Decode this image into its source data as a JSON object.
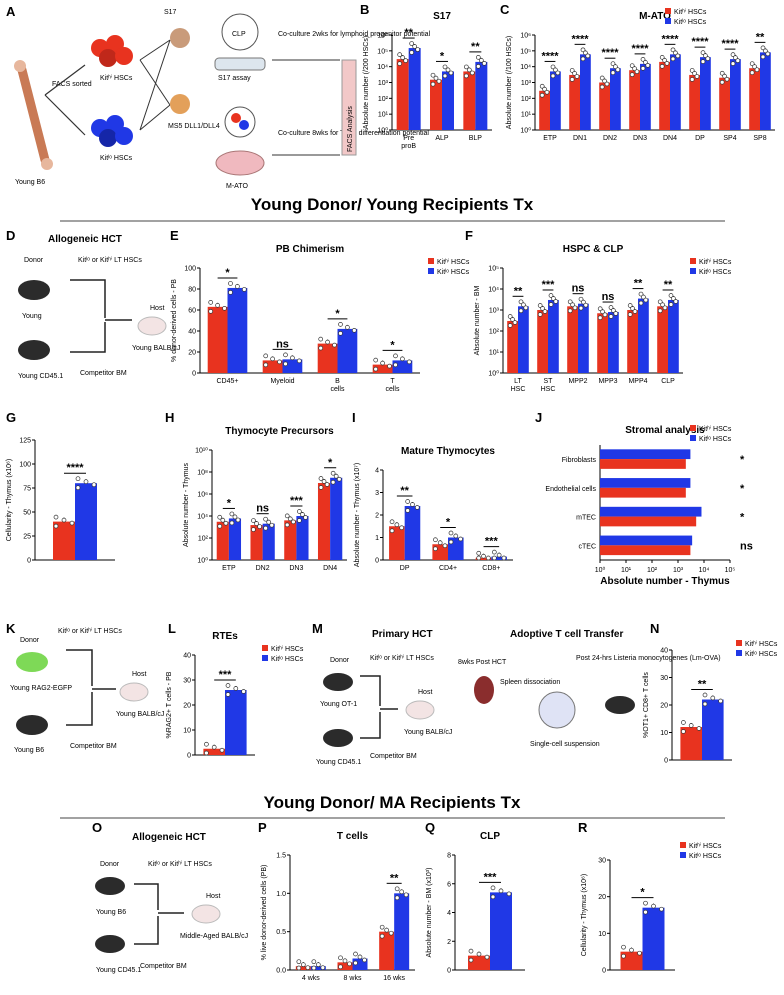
{
  "colors": {
    "red": "#e8331f",
    "blue": "#2038e6",
    "stars": "#000000"
  },
  "legend": {
    "hi": "Kitʰⁱ HSCs",
    "lo": "Kitˡᵒ HSCs"
  },
  "sections": {
    "young": "Young Donor/ Young Recipients Tx",
    "ma": "Young Donor/ MA Recipients Tx"
  },
  "panelA": {
    "label": "A",
    "young_b6": "Young B6",
    "facs": "FACS sorted",
    "kit_hi": "Kitʰⁱ HSCs",
    "kit_lo": "Kitˡᵒ HSCs",
    "s17": "S17",
    "ms5": "MS5 DLL1/DLL4",
    "clp": "CLP",
    "s17_assay": "S17 assay",
    "matoo": "M-ATO",
    "co1": "Co-culture 2wks for lymphoid progenitor potential",
    "co2": "Co-culture 8wks for T cell differentiation potential",
    "facs_analysis": "FACS Analysis"
  },
  "panelD": {
    "label": "D",
    "title": "Allogeneic HCT",
    "donor": "Donor",
    "young": "Young",
    "young_cd451": "Young CD45.1",
    "lt": "Kitˡᵒ or Kitʰⁱ LT HSCs",
    "host": "Host",
    "recipient": "Young BALB/cJ",
    "competitor": "Competitor BM"
  },
  "panelK": {
    "label": "K",
    "donor": "Donor",
    "young_rag": "Young RAG2-EGFP",
    "young_b6": "Young B6",
    "lt": "Kitˡᵒ or Kitʰⁱ LT HSCs",
    "host": "Host",
    "recipient": "Young BALB/cJ",
    "competitor": "Competitor BM"
  },
  "panelM": {
    "label": "M",
    "title1": "Primary HCT",
    "title2": "Adoptive T cell Transfer",
    "donor": "Donor",
    "young_ot1": "Young OT-1",
    "young_cd451": "Young CD45.1",
    "lt": "Kitˡᵒ or Kitʰⁱ LT HSCs",
    "host": "Host",
    "recipient": "Young BALB/cJ",
    "competitor": "Competitor BM",
    "weeks": "8wks Post HCT",
    "spleen": "Spleen dissociation",
    "single": "Single-cell suspension",
    "post": "Post 24-hrs Listeria monocytogenes (Lm-OVA)"
  },
  "panelO": {
    "label": "O",
    "title": "Allogeneic HCT",
    "donor": "Donor",
    "young_b6": "Young B6",
    "young_cd451": "Young CD45.1",
    "lt": "Kitˡᵒ or Kitʰⁱ LT HSCs",
    "host": "Host",
    "recipient": "Middle-Aged BALB/cJ",
    "competitor": "Competitor BM"
  },
  "chart_data": [
    {
      "id": "B",
      "type": "bar",
      "title": "S17",
      "scale": "log",
      "ylabel": "Absolute number (/200 HSCs)",
      "categories": [
        "Pre proB",
        "ALP",
        "BLP"
      ],
      "ylim": [
        1,
        1000000
      ],
      "yticks": [
        "10⁰",
        "10¹",
        "10²",
        "10³",
        "10⁴",
        "10⁵",
        "10⁶"
      ],
      "series": [
        {
          "name": "Kit hi",
          "values": [
            30000,
            1500,
            5000
          ]
        },
        {
          "name": "Kit lo",
          "values": [
            150000,
            5000,
            20000
          ]
        }
      ],
      "sig": [
        "**",
        "*",
        "**"
      ]
    },
    {
      "id": "C",
      "type": "bar",
      "title": "M-ATO",
      "scale": "log",
      "ylabel": "Absolute number (/100 HSCs)",
      "categories": [
        "ETP",
        "DN1",
        "DN2",
        "DN3",
        "DN4",
        "DP",
        "SP4",
        "SP8"
      ],
      "ylim": [
        1,
        1000000
      ],
      "yticks": [
        "10⁰",
        "10¹",
        "10²",
        "10³",
        "10⁴",
        "10⁵",
        "10⁶"
      ],
      "series": [
        {
          "name": "Kit hi",
          "values": [
            300,
            3000,
            1000,
            6000,
            20000,
            3000,
            2000,
            8000
          ]
        },
        {
          "name": "Kit lo",
          "values": [
            5000,
            60000,
            8000,
            15000,
            60000,
            40000,
            30000,
            80000
          ]
        }
      ],
      "sig": [
        "****",
        "****",
        "****",
        "****",
        "****",
        "****",
        "****",
        "**"
      ]
    },
    {
      "id": "E",
      "type": "bar",
      "title": "PB Chimerism",
      "scale": "linear",
      "ylabel": "% donor-derived cells - PB",
      "categories": [
        "CD45+",
        "Myeloid",
        "B cells",
        "T cells"
      ],
      "ylim": [
        0,
        100
      ],
      "yticks": [
        "0",
        "20",
        "40",
        "60",
        "80",
        "100"
      ],
      "series": [
        {
          "name": "Kit hi",
          "values": [
            63,
            12,
            28,
            8
          ]
        },
        {
          "name": "Kit lo",
          "values": [
            81,
            13,
            42,
            12
          ]
        }
      ],
      "sig": [
        "*",
        "ns",
        "*",
        "*"
      ]
    },
    {
      "id": "F",
      "type": "bar",
      "title": "HSPC & CLP",
      "scale": "log",
      "ylabel": "Absolute number - BM",
      "categories": [
        "LT HSC",
        "ST HSC",
        "MPP2",
        "MPP3",
        "MPP4",
        "CLP"
      ],
      "ylim": [
        1,
        100000
      ],
      "yticks": [
        "10⁰",
        "10¹",
        "10²",
        "10³",
        "10⁴",
        "10⁵"
      ],
      "series": [
        {
          "name": "Kit hi",
          "values": [
            300,
            1000,
            1500,
            700,
            1000,
            1500
          ]
        },
        {
          "name": "Kit lo",
          "values": [
            1500,
            3000,
            2000,
            800,
            3500,
            3000
          ]
        }
      ],
      "sig": [
        "**",
        "***",
        "ns",
        "ns",
        "**",
        "**"
      ]
    },
    {
      "id": "G",
      "type": "bar",
      "title": "",
      "scale": "linear",
      "ylabel": "Cellularity - Thymus (x10⁶)",
      "categories": [
        ""
      ],
      "ylim": [
        0,
        125
      ],
      "yticks": [
        "0",
        "25",
        "50",
        "75",
        "100",
        "125"
      ],
      "series": [
        {
          "name": "Kit hi",
          "values": [
            40
          ]
        },
        {
          "name": "Kit lo",
          "values": [
            80
          ]
        }
      ],
      "sig": [
        "****"
      ]
    },
    {
      "id": "H",
      "type": "bar",
      "title": "Thymocyte Precursors",
      "scale": "log",
      "ylabel": "Absolute number - Thymus",
      "categories": [
        "ETP",
        "DN2",
        "DN3",
        "DN4"
      ],
      "ylim": [
        1,
        10000000000
      ],
      "yticks": [
        "10⁰",
        "10²",
        "10⁴",
        "10⁶",
        "10⁸",
        "10¹⁰"
      ],
      "series": [
        {
          "name": "Kit hi",
          "values": [
            3000,
            1500,
            4000,
            10000000
          ]
        },
        {
          "name": "Kit lo",
          "values": [
            6000,
            2000,
            10000,
            30000000
          ]
        }
      ],
      "sig": [
        "*",
        "ns",
        "***",
        "*"
      ]
    },
    {
      "id": "I",
      "type": "bar",
      "title": "Mature Thymocytes",
      "scale": "linear",
      "ylabel": "Absolute number - Thymus (x10⁷)",
      "categories": [
        "DP",
        "CD4+",
        "CD8+"
      ],
      "ylim": [
        0,
        4
      ],
      "yticks": [
        "0",
        "1",
        "2",
        "3",
        "4"
      ],
      "series": [
        {
          "name": "Kit hi",
          "values": [
            1.5,
            0.7,
            0.1
          ]
        },
        {
          "name": "Kit lo",
          "values": [
            2.4,
            1.0,
            0.15
          ]
        }
      ],
      "sig": [
        "**",
        "*",
        "***"
      ]
    },
    {
      "id": "J",
      "type": "hbar",
      "title": "Stromal analysis",
      "scale": "log",
      "xlabel": "Absolute number - Thymus",
      "categories": [
        "Fibroblasts",
        "Endothelial cells",
        "mTEC",
        "cTEC"
      ],
      "xlim": [
        1,
        100000
      ],
      "xticks": [
        "10⁰",
        "10¹",
        "10²",
        "10³",
        "10⁴",
        "10⁵"
      ],
      "series": [
        {
          "name": "Kit hi",
          "values": [
            2000,
            2000,
            5000,
            3000
          ]
        },
        {
          "name": "Kit lo",
          "values": [
            3000,
            3000,
            8000,
            3500
          ]
        }
      ],
      "sig": [
        "*",
        "*",
        "*",
        "ns"
      ]
    },
    {
      "id": "L",
      "type": "bar",
      "title": "RTEs",
      "scale": "linear",
      "ylabel": "%RAG2+ T cells - PB",
      "categories": [
        ""
      ],
      "ylim": [
        0,
        40
      ],
      "yticks": [
        "0",
        "10",
        "20",
        "30",
        "40"
      ],
      "series": [
        {
          "name": "Kit hi",
          "values": [
            2.5
          ]
        },
        {
          "name": "Kit lo",
          "values": [
            26
          ]
        }
      ],
      "sig": [
        "***"
      ]
    },
    {
      "id": "N",
      "type": "bar",
      "title": "",
      "scale": "linear",
      "ylabel": "%OT1+ CD8+ T cells",
      "categories": [
        ""
      ],
      "ylim": [
        0,
        40
      ],
      "yticks": [
        "0",
        "10",
        "20",
        "30",
        "40"
      ],
      "series": [
        {
          "name": "Kit hi",
          "values": [
            12
          ]
        },
        {
          "name": "Kit lo",
          "values": [
            22
          ]
        }
      ],
      "sig": [
        "**"
      ]
    },
    {
      "id": "P",
      "type": "bar",
      "title": "T cells",
      "scale": "linear",
      "ylabel": "% live donor-derived cells (PB)",
      "categories": [
        "4 wks",
        "8 wks",
        "16 wks"
      ],
      "ylim": [
        0,
        1.5
      ],
      "yticks": [
        "0.0",
        "0.5",
        "1.0",
        "1.5"
      ],
      "series": [
        {
          "name": "Kit hi",
          "values": [
            0.05,
            0.1,
            0.5
          ]
        },
        {
          "name": "Kit lo",
          "values": [
            0.05,
            0.15,
            1.0
          ]
        }
      ],
      "sig": [
        "",
        "",
        "**"
      ]
    },
    {
      "id": "Q",
      "type": "bar",
      "title": "CLP",
      "scale": "linear",
      "ylabel": "Absolute number - BM (x10³)",
      "categories": [
        ""
      ],
      "ylim": [
        0,
        8
      ],
      "yticks": [
        "0",
        "2",
        "4",
        "6",
        "8"
      ],
      "series": [
        {
          "name": "Kit hi",
          "values": [
            1.0
          ]
        },
        {
          "name": "Kit lo",
          "values": [
            5.4
          ]
        }
      ],
      "sig": [
        "***"
      ]
    },
    {
      "id": "R",
      "type": "bar",
      "title": "",
      "scale": "linear",
      "ylabel": "Cellularity - Thymus (x10⁶)",
      "categories": [
        ""
      ],
      "ylim": [
        0,
        30
      ],
      "yticks": [
        "0",
        "10",
        "20",
        "30"
      ],
      "series": [
        {
          "name": "Kit hi",
          "values": [
            5
          ]
        },
        {
          "name": "Kit lo",
          "values": [
            17
          ]
        }
      ],
      "sig": [
        "*"
      ]
    }
  ]
}
